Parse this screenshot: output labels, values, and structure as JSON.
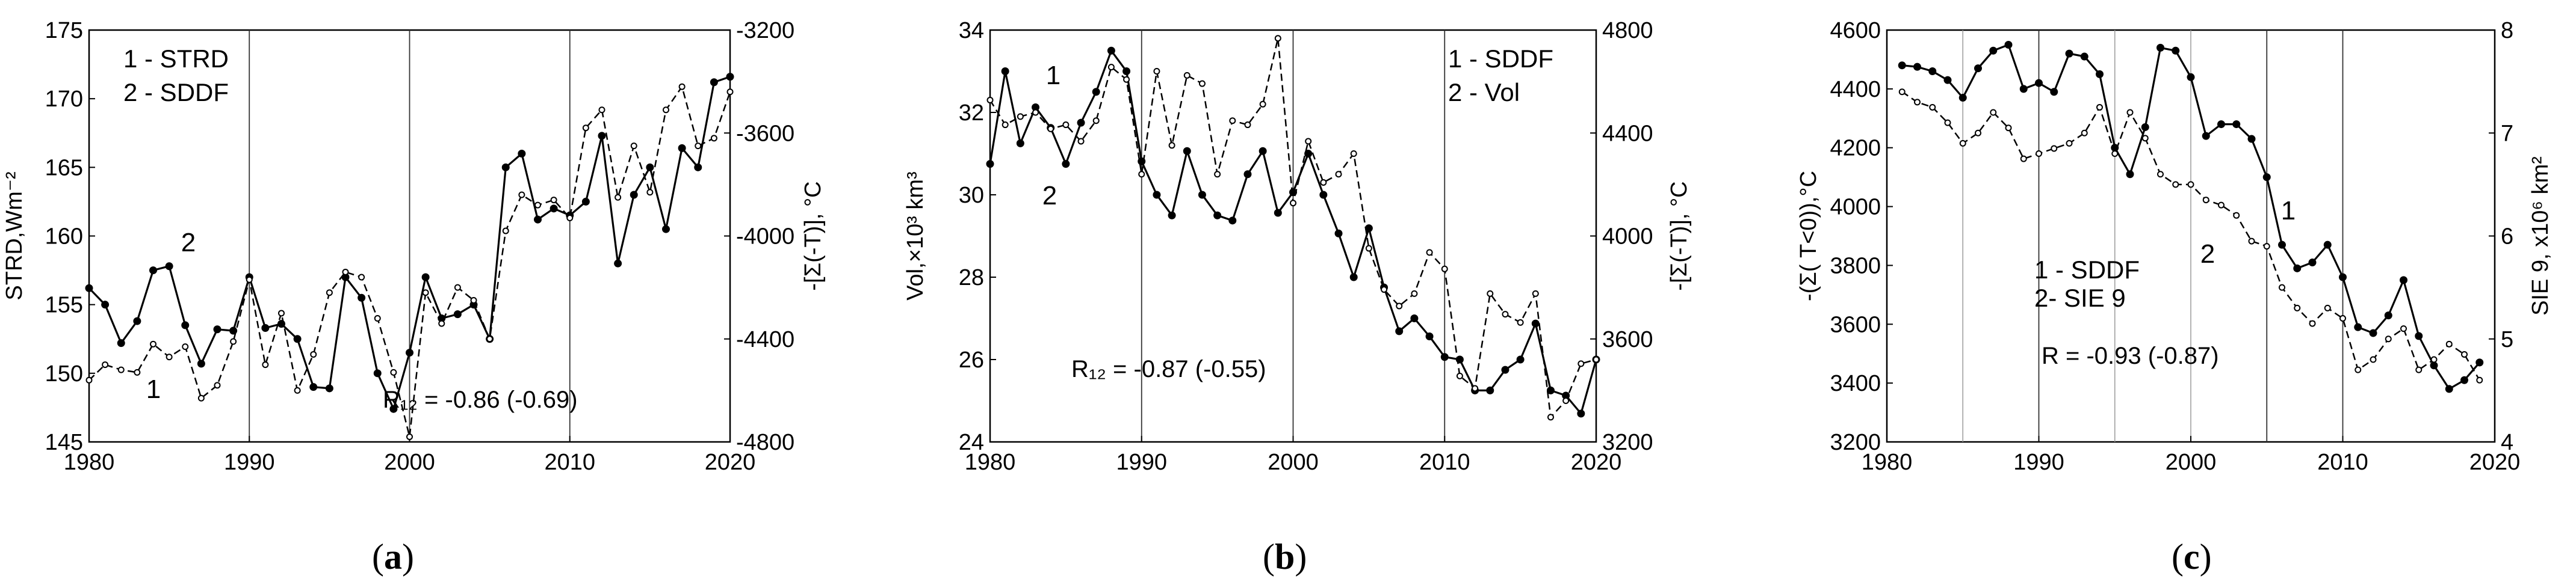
{
  "captions": [
    "(a)",
    "(b)",
    "(c)"
  ],
  "chart_data": [
    {
      "type": "line",
      "panel": "a",
      "ylabel": "STRD,Wm⁻²",
      "y2label": "-[Σ(-T)], °C",
      "ylim": [
        145,
        175
      ],
      "y2lim": [
        -4800,
        -3200
      ],
      "xlim": [
        1980,
        2020
      ],
      "xticks": [
        1980,
        1990,
        2000,
        2010,
        2020
      ],
      "yticks": [
        145,
        150,
        155,
        160,
        165,
        170,
        175
      ],
      "y2ticks": [
        -4800,
        -4400,
        -4000,
        -3600,
        -3200
      ],
      "vlines": [
        1990,
        2000,
        2010
      ],
      "legend": [
        "1 - STRD",
        "2 - SDDF"
      ],
      "annotation": "R₁₂ = -0.86 (-0.69)",
      "curve_labels": [
        "2",
        "1"
      ],
      "x": [
        1980,
        1981,
        1982,
        1983,
        1984,
        1985,
        1986,
        1987,
        1988,
        1989,
        1990,
        1991,
        1992,
        1993,
        1994,
        1995,
        1996,
        1997,
        1998,
        1999,
        2000,
        2001,
        2002,
        2003,
        2004,
        2005,
        2006,
        2007,
        2008,
        2009,
        2010,
        2011,
        2012,
        2013,
        2014,
        2015,
        2016,
        2017,
        2018,
        2019,
        2020
      ],
      "series": [
        {
          "name": "1 - STRD",
          "axis": "left",
          "style": "solid",
          "values": [
            156.2,
            155,
            152.2,
            153.8,
            157.5,
            157.8,
            153.5,
            150.7,
            153.2,
            153.1,
            157,
            153.3,
            153.6,
            152.5,
            149,
            148.9,
            157,
            155.5,
            150,
            147.4,
            151.5,
            157,
            154,
            154.3,
            155,
            152.5,
            165,
            166,
            161.2,
            162,
            161.5,
            162.5,
            167.3,
            158,
            163,
            165,
            160.5,
            166.4,
            165,
            171.2,
            171.6
          ]
        },
        {
          "name": "2 - SDDF",
          "axis": "right",
          "style": "dashed",
          "values": [
            -4560,
            -4500,
            -4520,
            -4530,
            -4420,
            -4470,
            -4430,
            -4630,
            -4580,
            -4410,
            -4170,
            -4500,
            -4300,
            -4600,
            -4460,
            -4220,
            -4140,
            -4160,
            -4320,
            -4530,
            -4780,
            -4220,
            -4340,
            -4200,
            -4250,
            -4400,
            -3980,
            -3840,
            -3880,
            -3860,
            -3930,
            -3580,
            -3510,
            -3850,
            -3650,
            -3830,
            -3510,
            -3420,
            -3650,
            -3620,
            -3440
          ]
        }
      ]
    },
    {
      "type": "line",
      "panel": "b",
      "ylabel": "Vol,×10³ km³",
      "y2label": "-[Σ(-T)], °C",
      "ylim": [
        24,
        34
      ],
      "y2lim": [
        3200,
        4800
      ],
      "xlim": [
        1980,
        2020
      ],
      "xticks": [
        1980,
        1990,
        2000,
        2010,
        2020
      ],
      "yticks": [
        24,
        26,
        28,
        30,
        32,
        34
      ],
      "y2ticks": [
        3200,
        3600,
        4000,
        4400,
        4800
      ],
      "vlines": [
        1990,
        2000,
        2010
      ],
      "legend": [
        "1 - SDDF",
        "2 - Vol"
      ],
      "annotation": "R₁₂ = -0.87 (-0.55)",
      "curve_labels": [
        "1",
        "2"
      ],
      "x": [
        1980,
        1981,
        1982,
        1983,
        1984,
        1985,
        1986,
        1987,
        1988,
        1989,
        1990,
        1991,
        1992,
        1993,
        1994,
        1995,
        1996,
        1997,
        1998,
        1999,
        2000,
        2001,
        2002,
        2003,
        2004,
        2005,
        2006,
        2007,
        2008,
        2009,
        2010,
        2011,
        2012,
        2013,
        2014,
        2015,
        2016,
        2017,
        2018,
        2019,
        2020
      ],
      "series": [
        {
          "name": "1 - SDDF",
          "axis": "right",
          "style": "solid",
          "values": [
            4280,
            4640,
            4360,
            4500,
            4420,
            4280,
            4440,
            4560,
            4720,
            4640,
            4290,
            4160,
            4080,
            4330,
            4160,
            4080,
            4060,
            4240,
            4330,
            4090,
            4170,
            4320,
            4160,
            4010,
            3840,
            4030,
            3800,
            3630,
            3680,
            3610,
            3530,
            3520,
            3400,
            3400,
            3480,
            3520,
            3660,
            3400,
            3380,
            3310,
            3520
          ]
        },
        {
          "name": "2 - Vol",
          "axis": "left",
          "style": "dashed",
          "values": [
            32.3,
            31.7,
            31.9,
            32,
            31.6,
            31.7,
            31.3,
            31.8,
            33.1,
            32.8,
            30.5,
            33,
            31.2,
            32.9,
            32.7,
            30.5,
            31.8,
            31.7,
            32.2,
            33.8,
            29.8,
            31.3,
            30.3,
            30.5,
            31,
            28.7,
            27.7,
            27.3,
            27.6,
            28.6,
            28.2,
            25.6,
            25.3,
            27.6,
            27.1,
            26.9,
            27.6,
            24.6,
            25,
            25.9,
            26
          ]
        }
      ]
    },
    {
      "type": "line",
      "panel": "c",
      "ylabel": "-(Σ( T<0)),°C",
      "y2label": "SIE 9, x10⁶ km²",
      "ylim": [
        3200,
        4600
      ],
      "y2lim": [
        4,
        8
      ],
      "xlim": [
        1980,
        2020
      ],
      "xticks": [
        1980,
        1990,
        2000,
        2010,
        2020
      ],
      "yticks": [
        3200,
        3400,
        3600,
        3800,
        4000,
        4200,
        4400,
        4600
      ],
      "y2ticks": [
        4,
        5,
        6,
        7,
        8
      ],
      "vlines_thin": [
        1985,
        1995,
        2000
      ],
      "vlines": [
        1990,
        2005,
        2010
      ],
      "legend": [
        "1 - SDDF",
        "2- SIE 9"
      ],
      "annotation": "R = -0.93 (-0.87)",
      "curve_labels": [
        "1",
        "2"
      ],
      "x": [
        1981,
        1982,
        1983,
        1984,
        1985,
        1986,
        1987,
        1988,
        1989,
        1990,
        1991,
        1992,
        1993,
        1994,
        1995,
        1996,
        1997,
        1998,
        1999,
        2000,
        2001,
        2002,
        2003,
        2004,
        2005,
        2006,
        2007,
        2008,
        2009,
        2010,
        2011,
        2012,
        2013,
        2014,
        2015,
        2016,
        2017,
        2018,
        2019
      ],
      "series": [
        {
          "name": "1 - SDDF",
          "axis": "left",
          "style": "solid",
          "values": [
            4480,
            4475,
            4460,
            4430,
            4370,
            4470,
            4530,
            4550,
            4400,
            4420,
            4390,
            4520,
            4510,
            4450,
            4200,
            4110,
            4270,
            4540,
            4530,
            4440,
            4240,
            4280,
            4280,
            4230,
            4100,
            3870,
            3790,
            3810,
            3870,
            3760,
            3590,
            3570,
            3630,
            3750,
            3560,
            3460,
            3380,
            3410,
            3470
          ]
        },
        {
          "name": "2- SIE 9",
          "axis": "right",
          "style": "dashed",
          "values": [
            7.4,
            7.3,
            7.25,
            7.1,
            6.9,
            7,
            7.2,
            7.05,
            6.75,
            6.8,
            6.85,
            6.9,
            7,
            7.25,
            6.8,
            7.2,
            6.95,
            6.6,
            6.5,
            6.5,
            6.35,
            6.3,
            6.2,
            5.95,
            5.9,
            5.5,
            5.3,
            5.15,
            5.3,
            5.2,
            4.7,
            4.8,
            5,
            5.1,
            4.7,
            4.8,
            4.95,
            4.85,
            4.6
          ]
        }
      ]
    }
  ]
}
